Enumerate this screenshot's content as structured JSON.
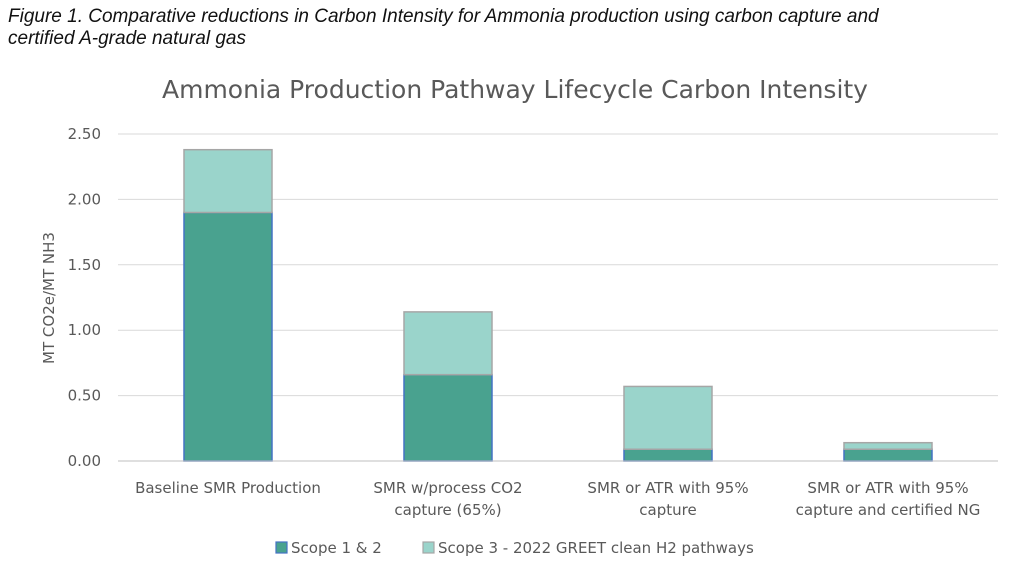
{
  "caption": {
    "line1": "Figure 1.  Comparative reductions in Carbon Intensity for Ammonia production using carbon capture and",
    "line2": "certified A-grade natural gas"
  },
  "chart_data": {
    "type": "bar",
    "stacked": true,
    "title": "Ammonia Production Pathway Lifecycle Carbon Intensity",
    "ylabel": "MT CO2e/MT NH3",
    "xlabel": "",
    "ylim": [
      0,
      2.5
    ],
    "yticks": [
      "0.00",
      "0.50",
      "1.00",
      "1.50",
      "2.00",
      "2.50"
    ],
    "grid": true,
    "legend_position": "bottom",
    "categories": [
      [
        "Baseline SMR Production"
      ],
      [
        "SMR w/process CO2",
        "capture (65%)"
      ],
      [
        "SMR or ATR with 95%",
        "capture"
      ],
      [
        "SMR or ATR with 95%",
        "capture and certified NG"
      ]
    ],
    "series": [
      {
        "name": "Scope 1 & 2",
        "color": "#49a28f",
        "border": "#4472c4",
        "values": [
          1.9,
          0.66,
          0.09,
          0.09
        ]
      },
      {
        "name": "Scope 3 - 2022 GREET clean H2 pathways",
        "color": "#9ad4cb",
        "border": "#a6a6a6",
        "values": [
          0.48,
          0.48,
          0.48,
          0.05
        ]
      }
    ]
  }
}
